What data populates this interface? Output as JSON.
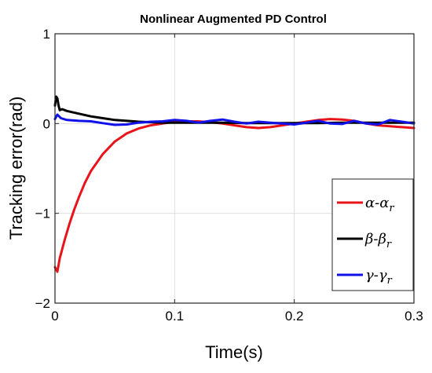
{
  "chart_data": {
    "type": "line",
    "title": "Nonlinear Augmented PD Control",
    "xlabel": "Time(s)",
    "ylabel": "Tracking error(rad)",
    "xlim": [
      0,
      0.3
    ],
    "ylim": [
      -2,
      1
    ],
    "xticks": [
      0,
      0.1,
      0.2,
      0.3
    ],
    "xtick_labels": [
      "0",
      "0.1",
      "0.2",
      "0.3"
    ],
    "yticks": [
      -2,
      -1,
      0,
      1
    ],
    "ytick_labels": [
      "−2",
      "−1",
      "0",
      "1"
    ],
    "grid": true,
    "legend_position": "lower-right",
    "series": [
      {
        "name": "α-α",
        "name_subscript": "r",
        "color": "#e8141a",
        "x": [
          0,
          0.002,
          0.004,
          0.008,
          0.012,
          0.016,
          0.02,
          0.025,
          0.03,
          0.04,
          0.05,
          0.06,
          0.07,
          0.08,
          0.09,
          0.1,
          0.11,
          0.12,
          0.13,
          0.14,
          0.15,
          0.16,
          0.17,
          0.18,
          0.19,
          0.2,
          0.21,
          0.22,
          0.23,
          0.24,
          0.25,
          0.26,
          0.27,
          0.28,
          0.29,
          0.3
        ],
        "y": [
          -1.6,
          -1.65,
          -1.5,
          -1.3,
          -1.12,
          -0.96,
          -0.82,
          -0.66,
          -0.53,
          -0.34,
          -0.2,
          -0.11,
          -0.055,
          -0.02,
          0.0,
          0.02,
          0.025,
          0.025,
          0.015,
          0.0,
          -0.02,
          -0.04,
          -0.05,
          -0.04,
          -0.02,
          0.0,
          0.02,
          0.04,
          0.05,
          0.045,
          0.03,
          0.0,
          -0.02,
          -0.03,
          -0.04,
          -0.05
        ]
      },
      {
        "name": "β-β",
        "name_subscript": "r",
        "color": "#000000",
        "x": [
          0,
          0.001,
          0.002,
          0.003,
          0.004,
          0.006,
          0.01,
          0.02,
          0.03,
          0.04,
          0.05,
          0.06,
          0.07,
          0.08,
          0.09,
          0.1,
          0.12,
          0.14,
          0.16,
          0.18,
          0.2,
          0.22,
          0.24,
          0.26,
          0.28,
          0.3
        ],
        "y": [
          0.2,
          0.3,
          0.28,
          0.2,
          0.15,
          0.16,
          0.14,
          0.11,
          0.08,
          0.06,
          0.04,
          0.03,
          0.02,
          0.015,
          0.01,
          0.01,
          0.01,
          0.01,
          0.005,
          0.005,
          0.005,
          0.005,
          0.01,
          0.01,
          0.01,
          0.01
        ]
      },
      {
        "name": "γ-γ",
        "name_subscript": "r",
        "color": "#1010e8",
        "x": [
          0,
          0.002,
          0.005,
          0.01,
          0.02,
          0.03,
          0.04,
          0.05,
          0.06,
          0.07,
          0.08,
          0.09,
          0.1,
          0.11,
          0.12,
          0.13,
          0.14,
          0.15,
          0.16,
          0.17,
          0.18,
          0.19,
          0.2,
          0.21,
          0.22,
          0.23,
          0.24,
          0.25,
          0.26,
          0.27,
          0.28,
          0.29,
          0.3
        ],
        "y": [
          0.05,
          0.1,
          0.06,
          0.04,
          0.03,
          0.025,
          0.005,
          -0.015,
          -0.01,
          0.01,
          0.02,
          0.025,
          0.04,
          0.03,
          0.01,
          0.03,
          0.045,
          0.02,
          0.0,
          0.02,
          0.01,
          0.0,
          -0.01,
          0.01,
          0.03,
          0.0,
          -0.005,
          0.03,
          0.0,
          -0.01,
          0.04,
          0.02,
          0.0
        ]
      }
    ]
  }
}
